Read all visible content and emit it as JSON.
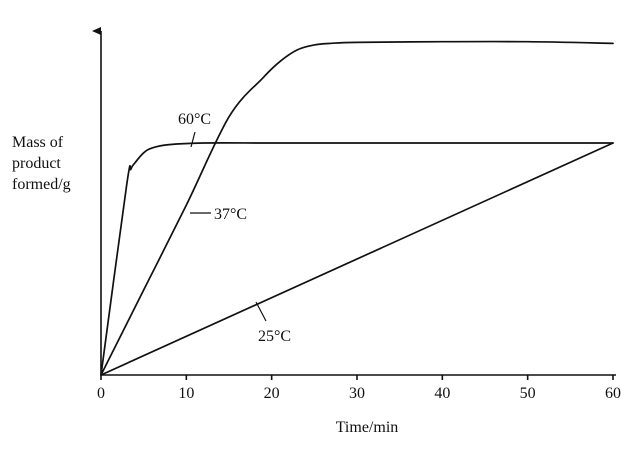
{
  "chart_data": {
    "type": "line",
    "title": "",
    "xlabel": "Time/min",
    "ylabel_lines": [
      "Mass of",
      "product",
      "formed/g"
    ],
    "xlim": [
      0,
      60
    ],
    "ylim": [
      0,
      100
    ],
    "x_ticks": [
      "0",
      "10",
      "20",
      "30",
      "40",
      "50",
      "60"
    ],
    "grid": false,
    "legend": "none",
    "series": [
      {
        "name": "60°C",
        "x": [
          0,
          3,
          3.5,
          4,
          5,
          6,
          8,
          12,
          20,
          30,
          40,
          50,
          60
        ],
        "y": [
          0,
          58,
          63,
          65,
          68,
          69.5,
          70.5,
          71,
          71,
          71,
          71,
          71,
          71
        ]
      },
      {
        "name": "37°C",
        "x": [
          0,
          5,
          10,
          15,
          19,
          21,
          23,
          25,
          27,
          30,
          40,
          50,
          60
        ],
        "y": [
          0,
          26,
          52,
          79,
          91,
          96,
          99.5,
          101,
          101.5,
          101.8,
          102,
          102,
          101.5
        ]
      },
      {
        "name": "25°C",
        "x": [
          0,
          60
        ],
        "y": [
          0,
          71
        ]
      }
    ]
  }
}
